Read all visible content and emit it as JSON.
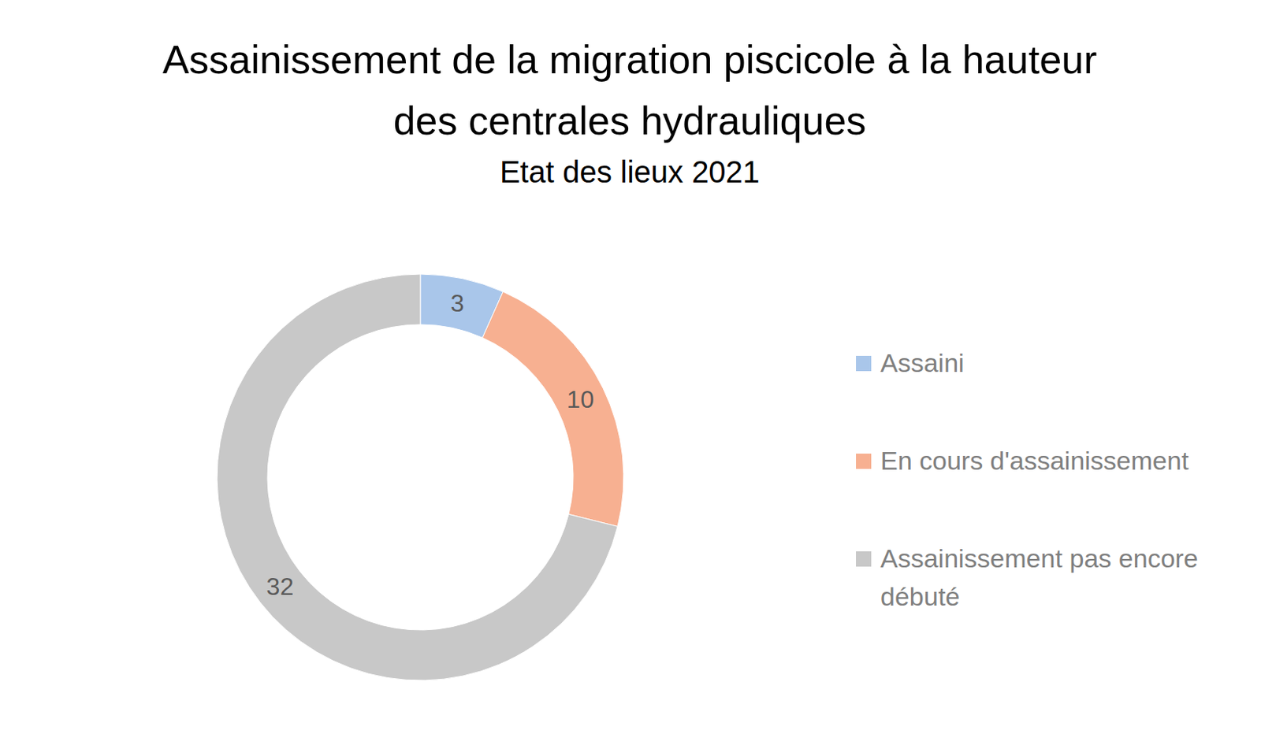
{
  "chart_data": {
    "type": "donut",
    "title": "Assainissement de la migration piscicole à la hauteur des centrales hydrauliques",
    "subtitle": "Etat des lieux 2021",
    "categories": [
      "Assaini",
      "En cours d'assainissement",
      "Assainissement pas encore débuté"
    ],
    "values": [
      3,
      10,
      32
    ],
    "colors": [
      "#a9c6ea",
      "#f7b091",
      "#c8c8c8"
    ],
    "data_labels": true,
    "legend": "right"
  }
}
